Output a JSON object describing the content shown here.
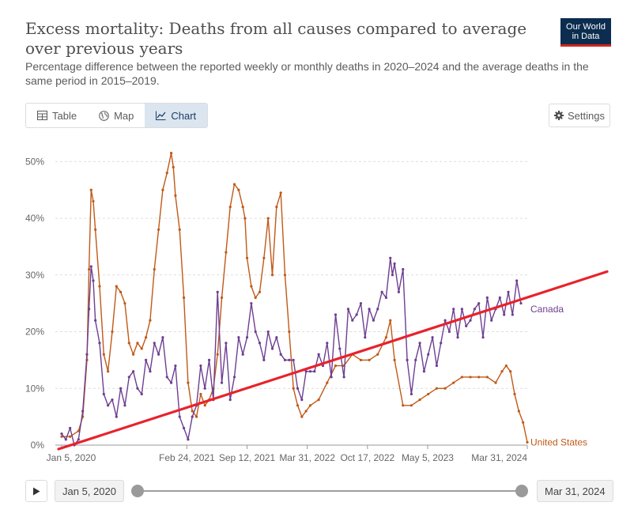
{
  "header": {
    "title": "Excess mortality: Deaths from all causes compared to average over previous years",
    "subtitle": "Percentage difference between the reported weekly or monthly deaths in 2020–2024 and the average deaths in the same period in 2015–2019.",
    "logo_line1": "Our World",
    "logo_line2": "in Data"
  },
  "tabs": [
    {
      "label": "Table",
      "icon": "table-icon"
    },
    {
      "label": "Map",
      "icon": "globe-icon"
    },
    {
      "label": "Chart",
      "icon": "line-chart-icon",
      "active": true
    }
  ],
  "settings_label": "Settings",
  "colors": {
    "canada": "#6d3e91",
    "united_states": "#c05917",
    "annotation": "#e8222b",
    "grid": "#dddddd"
  },
  "chart_data": {
    "type": "line",
    "xlabel": "",
    "ylabel": "",
    "ylim": [
      0,
      52
    ],
    "y_ticks": [
      0,
      10,
      20,
      30,
      40,
      50
    ],
    "y_tick_labels": [
      "0%",
      "10%",
      "20%",
      "30%",
      "40%",
      "50%"
    ],
    "x_range": [
      "2020-01-05",
      "2024-03-31"
    ],
    "x_ticks": [
      "2020-01-05",
      "2021-02-24",
      "2021-09-12",
      "2022-03-31",
      "2022-10-17",
      "2023-05-05",
      "2024-03-31"
    ],
    "x_tick_labels": [
      "Jan 5, 2020",
      "Feb 24, 2021",
      "Sep 12, 2021",
      "Mar 31, 2022",
      "Oct 17, 2022",
      "May 5, 2023",
      "Mar 31, 2024"
    ],
    "grid": "horizontal dotted",
    "series": [
      {
        "name": "United States",
        "x": [
          "2020-01-05",
          "2020-02-02",
          "2020-03-01",
          "2020-03-15",
          "2020-03-29",
          "2020-04-05",
          "2020-04-12",
          "2020-04-19",
          "2020-04-26",
          "2020-05-10",
          "2020-05-24",
          "2020-06-07",
          "2020-06-21",
          "2020-07-05",
          "2020-07-19",
          "2020-08-02",
          "2020-08-16",
          "2020-08-30",
          "2020-09-13",
          "2020-09-27",
          "2020-10-11",
          "2020-10-25",
          "2020-11-08",
          "2020-11-22",
          "2020-12-06",
          "2020-12-20",
          "2021-01-03",
          "2021-01-10",
          "2021-01-17",
          "2021-01-31",
          "2021-02-14",
          "2021-02-28",
          "2021-03-14",
          "2021-03-28",
          "2021-04-11",
          "2021-04-25",
          "2021-05-09",
          "2021-05-23",
          "2021-06-06",
          "2021-06-20",
          "2021-07-04",
          "2021-07-18",
          "2021-08-01",
          "2021-08-15",
          "2021-08-29",
          "2021-09-05",
          "2021-09-12",
          "2021-09-26",
          "2021-10-10",
          "2021-10-24",
          "2021-11-07",
          "2021-11-21",
          "2021-12-05",
          "2021-12-19",
          "2022-01-02",
          "2022-01-16",
          "2022-01-30",
          "2022-02-13",
          "2022-02-27",
          "2022-03-13",
          "2022-03-27",
          "2022-04-10",
          "2022-05-08",
          "2022-06-05",
          "2022-07-03",
          "2022-07-31",
          "2022-08-28",
          "2022-09-25",
          "2022-10-23",
          "2022-11-20",
          "2022-12-18",
          "2023-01-01",
          "2023-01-15",
          "2023-02-12",
          "2023-03-12",
          "2023-04-09",
          "2023-05-07",
          "2023-06-04",
          "2023-07-02",
          "2023-07-30",
          "2023-08-27",
          "2023-09-24",
          "2023-10-22",
          "2023-11-19",
          "2023-12-17",
          "2024-01-07",
          "2024-01-21",
          "2024-02-04",
          "2024-02-18",
          "2024-03-03",
          "2024-03-17",
          "2024-03-31"
        ],
        "y": [
          1.5,
          1.5,
          2.5,
          5,
          15,
          31,
          45,
          43,
          38,
          28,
          16,
          13,
          20,
          28,
          27,
          25,
          18,
          16,
          18,
          17,
          19,
          22,
          31,
          38,
          45,
          48,
          51.5,
          49,
          44,
          38,
          26,
          11,
          6,
          5,
          9,
          7,
          8,
          10,
          16,
          26,
          34,
          42,
          46,
          45,
          42,
          40,
          33,
          28,
          26,
          27,
          33,
          40,
          30,
          42,
          44.5,
          30,
          20,
          10,
          7,
          5,
          6,
          7,
          8,
          11,
          14,
          14,
          16,
          15,
          15,
          16,
          19,
          22,
          15,
          7,
          7,
          8,
          9,
          10,
          10,
          11,
          12,
          12,
          12,
          12,
          11,
          13,
          14,
          13,
          9,
          6,
          4,
          0.5
        ]
      },
      {
        "name": "Canada",
        "x": [
          "2020-01-05",
          "2020-01-19",
          "2020-02-02",
          "2020-02-16",
          "2020-03-01",
          "2020-03-15",
          "2020-03-29",
          "2020-04-05",
          "2020-04-12",
          "2020-04-19",
          "2020-04-26",
          "2020-05-10",
          "2020-05-24",
          "2020-06-07",
          "2020-06-21",
          "2020-07-05",
          "2020-07-19",
          "2020-08-02",
          "2020-08-16",
          "2020-08-30",
          "2020-09-13",
          "2020-09-27",
          "2020-10-11",
          "2020-10-25",
          "2020-11-08",
          "2020-11-22",
          "2020-12-06",
          "2020-12-20",
          "2021-01-03",
          "2021-01-17",
          "2021-01-31",
          "2021-02-14",
          "2021-02-28",
          "2021-03-14",
          "2021-03-28",
          "2021-04-11",
          "2021-04-25",
          "2021-05-09",
          "2021-05-23",
          "2021-06-06",
          "2021-06-20",
          "2021-07-04",
          "2021-07-18",
          "2021-08-01",
          "2021-08-15",
          "2021-08-29",
          "2021-09-12",
          "2021-09-26",
          "2021-10-10",
          "2021-10-24",
          "2021-11-07",
          "2021-11-21",
          "2021-12-05",
          "2021-12-19",
          "2022-01-02",
          "2022-01-16",
          "2022-01-30",
          "2022-02-13",
          "2022-02-27",
          "2022-03-13",
          "2022-03-27",
          "2022-04-10",
          "2022-04-24",
          "2022-05-08",
          "2022-05-22",
          "2022-06-05",
          "2022-06-19",
          "2022-07-03",
          "2022-07-17",
          "2022-07-31",
          "2022-08-14",
          "2022-08-28",
          "2022-09-11",
          "2022-09-25",
          "2022-10-09",
          "2022-10-23",
          "2022-11-06",
          "2022-11-20",
          "2022-12-04",
          "2022-12-18",
          "2023-01-01",
          "2023-01-08",
          "2023-01-15",
          "2023-01-29",
          "2023-02-12",
          "2023-02-26",
          "2023-03-12",
          "2023-03-26",
          "2023-04-09",
          "2023-04-23",
          "2023-05-07",
          "2023-05-21",
          "2023-06-04",
          "2023-06-18",
          "2023-07-02",
          "2023-07-16",
          "2023-07-30",
          "2023-08-13",
          "2023-08-27",
          "2023-09-10",
          "2023-09-24",
          "2023-10-08",
          "2023-10-22",
          "2023-11-05",
          "2023-11-19",
          "2023-12-03",
          "2023-12-17",
          "2023-12-31",
          "2024-01-14",
          "2024-01-28",
          "2024-02-11",
          "2024-02-25",
          "2024-03-10"
        ],
        "y": [
          2,
          1,
          3,
          0,
          1,
          6,
          16,
          24,
          31.5,
          29,
          22,
          18,
          9,
          7,
          8,
          5,
          10,
          7,
          12,
          13,
          10,
          9,
          15,
          13,
          18,
          16,
          19,
          12,
          11,
          14,
          5,
          3,
          1,
          5,
          7,
          14,
          10,
          15,
          8,
          27,
          11,
          18,
          8,
          12,
          19,
          16,
          19,
          25,
          20,
          18,
          15,
          20,
          17,
          19,
          16,
          15,
          15,
          15,
          10,
          8,
          13,
          13,
          13,
          16,
          14,
          18,
          12,
          23,
          17,
          12,
          24,
          22,
          23,
          25,
          19,
          24,
          22,
          24,
          27,
          26,
          33,
          30,
          32,
          27,
          31,
          15,
          9,
          15,
          18,
          13,
          16,
          19,
          14,
          18,
          22,
          20,
          24,
          19,
          24,
          21,
          22,
          24,
          25,
          19,
          26,
          22,
          24,
          26,
          23,
          27,
          23,
          29,
          25
        ]
      }
    ],
    "end_labels": {
      "canada": "Canada",
      "united_states": "United States"
    }
  },
  "timeline": {
    "start_label": "Jan 5, 2020",
    "end_label": "Mar 31, 2024"
  }
}
